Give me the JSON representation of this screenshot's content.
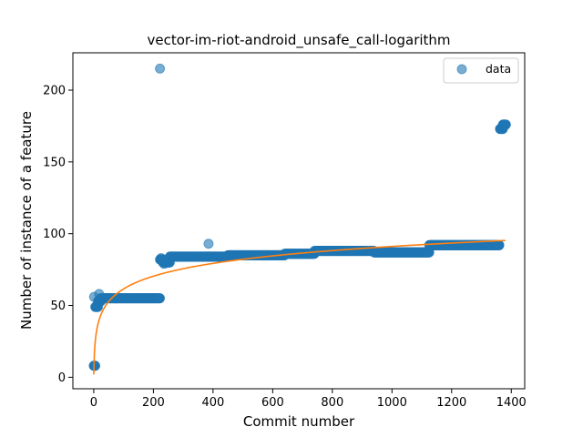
{
  "chart_data": {
    "type": "scatter",
    "title": "vector-im-riot-android_unsafe_call-logarithm",
    "xlabel": "Commit number",
    "ylabel": "Number of instance of a feature",
    "xlim": [
      -70,
      1445
    ],
    "ylim": [
      -8,
      226
    ],
    "xticks": [
      0,
      200,
      400,
      600,
      800,
      1000,
      1200,
      1400
    ],
    "yticks": [
      0,
      50,
      100,
      150,
      200
    ],
    "grid": false,
    "legend": {
      "position": "top-right",
      "entries": [
        "data"
      ]
    },
    "colors": {
      "data": "#1f77b4",
      "fit": "#ff7f0e"
    },
    "series": [
      {
        "name": "data",
        "kind": "scatter",
        "segments": [
          {
            "x_start": 0,
            "x_end": 5,
            "y": 8
          },
          {
            "x_start": 5,
            "x_end": 14,
            "y": 49
          },
          {
            "x_start": 14,
            "x_end": 24,
            "y": 53
          },
          {
            "x_start": 24,
            "x_end": 222,
            "y": 55
          },
          {
            "x_start": 222,
            "x_end": 232,
            "y": 82
          },
          {
            "x_start": 232,
            "x_end": 255,
            "y": 80
          },
          {
            "x_start": 255,
            "x_end": 330,
            "y": 84
          },
          {
            "x_start": 330,
            "x_end": 450,
            "y": 84
          },
          {
            "x_start": 450,
            "x_end": 640,
            "y": 85
          },
          {
            "x_start": 640,
            "x_end": 740,
            "y": 86
          },
          {
            "x_start": 740,
            "x_end": 940,
            "y": 88
          },
          {
            "x_start": 940,
            "x_end": 1125,
            "y": 87
          },
          {
            "x_start": 1125,
            "x_end": 1360,
            "y": 92
          },
          {
            "x_start": 1362,
            "x_end": 1372,
            "y": 173
          },
          {
            "x_start": 1372,
            "x_end": 1382,
            "y": 176
          }
        ],
        "points": [
          {
            "x": 1,
            "y": 56
          },
          {
            "x": 18,
            "y": 58
          },
          {
            "x": 222,
            "y": 215
          },
          {
            "x": 385,
            "y": 93
          },
          {
            "x": 226,
            "y": 83
          },
          {
            "x": 236,
            "y": 79
          },
          {
            "x": 1368,
            "y": 174
          },
          {
            "x": 1376,
            "y": 175
          }
        ]
      },
      {
        "name": "",
        "kind": "line",
        "model": "logarithmic",
        "x_range": [
          0,
          1380
        ],
        "samples": [
          {
            "x": 0,
            "y": 2
          },
          {
            "x": 10,
            "y": 39
          },
          {
            "x": 50,
            "y": 59
          },
          {
            "x": 100,
            "y": 66
          },
          {
            "x": 200,
            "y": 73
          },
          {
            "x": 400,
            "y": 81
          },
          {
            "x": 600,
            "y": 86
          },
          {
            "x": 800,
            "y": 89
          },
          {
            "x": 1000,
            "y": 92
          },
          {
            "x": 1200,
            "y": 94
          },
          {
            "x": 1380,
            "y": 96
          }
        ]
      }
    ]
  }
}
